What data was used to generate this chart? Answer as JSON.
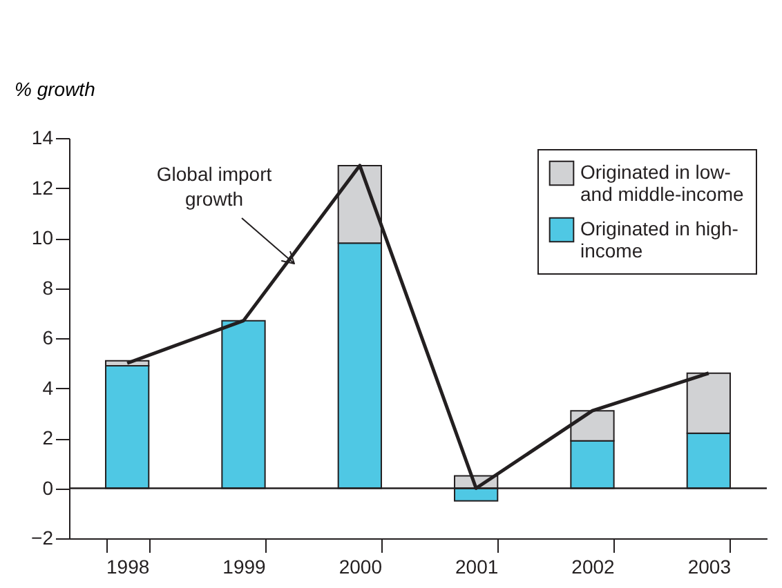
{
  "chart_data": {
    "type": "bar",
    "stacked": true,
    "ylabel": "% growth",
    "categories": [
      "1998",
      "1999",
      "2000",
      "2001",
      "2002",
      "2003"
    ],
    "series": [
      {
        "name": "Originated in high-income",
        "color": "#4fc8e4",
        "values": [
          4.9,
          6.7,
          9.8,
          -0.5,
          1.9,
          2.2
        ]
      },
      {
        "name": "Originated in low- and middle-income",
        "color": "#d1d2d4",
        "values": [
          0.2,
          null,
          3.1,
          0.5,
          1.2,
          2.4
        ]
      },
      {
        "type": "line",
        "name": "Global import growth",
        "color": "#231f20",
        "values": [
          5.0,
          6.7,
          12.9,
          0.0,
          3.1,
          4.6
        ]
      }
    ],
    "ylim": [
      -2,
      14
    ],
    "yticks": [
      {
        "value": -2,
        "label": "−2"
      },
      0,
      2,
      4,
      6,
      8,
      10,
      12,
      14
    ],
    "ref_lines": [
      {
        "axis": "y",
        "value": 0,
        "color": "#231f20"
      }
    ],
    "legend": "top right",
    "grid": false,
    "marker": "none",
    "line_style": "solid"
  }
}
